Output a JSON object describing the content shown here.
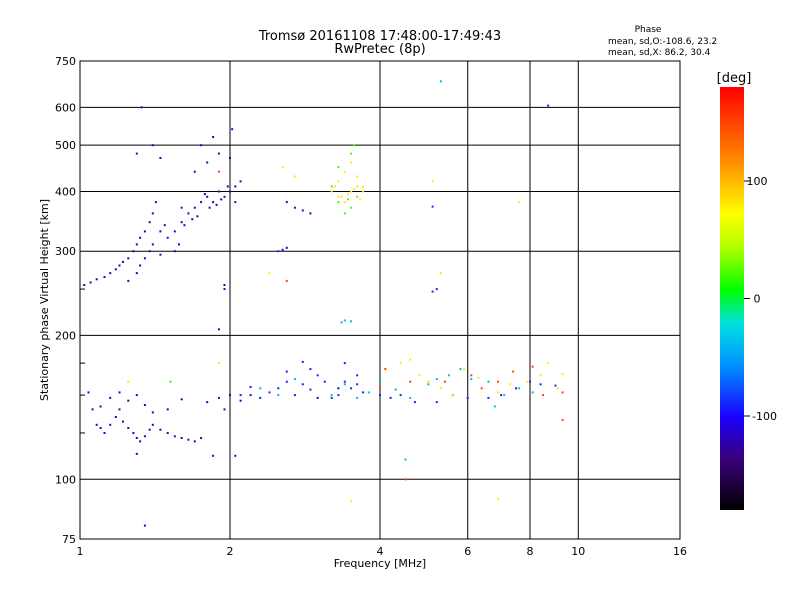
{
  "chart_data": {
    "type": "scatter",
    "title": "Tromsø 20161108 17:48:00-17:49:43",
    "subtitle": "RwPretec (8p)",
    "xlabel": "Frequency [MHz]",
    "ylabel": "Stationary phase Virtual Height [km]",
    "x_scale": "log",
    "y_scale": "log",
    "xlim": [
      1,
      16
    ],
    "ylim": [
      75,
      750
    ],
    "x_ticks": [
      1,
      2,
      4,
      6,
      8,
      10,
      16
    ],
    "x_tick_labels": [
      "1",
      "2",
      "4",
      "6",
      "8",
      "10",
      "16"
    ],
    "y_ticks": [
      75,
      100,
      200,
      300,
      400,
      500,
      600,
      750
    ],
    "y_tick_labels": [
      "75",
      "100",
      "200",
      "300",
      "400",
      "500",
      "600",
      "750"
    ],
    "grid": true,
    "phase_stats": {
      "title": "Phase",
      "line_o": "mean, sd,O:-108.6, 23.2",
      "line_x": "mean, sd,X:  86.2, 30.4"
    },
    "colorbar": {
      "label": "[deg]",
      "range": [
        -180,
        180
      ],
      "ticks": [
        -100,
        0,
        100
      ],
      "tick_labels": [
        "-100",
        "0",
        "100"
      ]
    },
    "series": [
      {
        "phase_deg": -120,
        "points": [
          [
            1.02,
            255
          ],
          [
            1.05,
            258
          ],
          [
            1.08,
            262
          ],
          [
            1.12,
            265
          ],
          [
            1.15,
            270
          ],
          [
            1.18,
            275
          ],
          [
            1.2,
            280
          ],
          [
            1.22,
            285
          ],
          [
            1.25,
            290
          ],
          [
            1.28,
            300
          ],
          [
            1.3,
            310
          ],
          [
            1.32,
            320
          ],
          [
            1.35,
            330
          ],
          [
            1.38,
            345
          ],
          [
            1.4,
            360
          ],
          [
            1.42,
            380
          ],
          [
            1.45,
            330
          ],
          [
            1.5,
            320
          ],
          [
            1.55,
            330
          ],
          [
            1.6,
            345
          ],
          [
            1.65,
            360
          ],
          [
            1.7,
            370
          ],
          [
            1.75,
            380
          ],
          [
            1.8,
            390
          ],
          [
            1.85,
            380
          ],
          [
            1.9,
            400
          ],
          [
            1.95,
            390
          ],
          [
            2.0,
            400
          ],
          [
            2.05,
            410
          ],
          [
            2.1,
            420
          ],
          [
            1.3,
            270
          ],
          [
            1.35,
            290
          ],
          [
            1.4,
            310
          ],
          [
            1.45,
            295
          ],
          [
            1.55,
            300
          ],
          [
            1.62,
            340
          ],
          [
            1.72,
            355
          ],
          [
            1.82,
            370
          ],
          [
            1.92,
            385
          ],
          [
            1.25,
            260
          ],
          [
            1.32,
            280
          ],
          [
            1.38,
            300
          ],
          [
            1.48,
            340
          ],
          [
            1.58,
            310
          ],
          [
            1.68,
            350
          ],
          [
            1.78,
            395
          ],
          [
            1.88,
            375
          ],
          [
            1.98,
            410
          ],
          [
            2.05,
            380
          ],
          [
            1.6,
            370
          ],
          [
            1.7,
            440
          ],
          [
            1.8,
            460
          ],
          [
            1.9,
            480
          ],
          [
            2.0,
            470
          ],
          [
            1.75,
            500
          ],
          [
            1.85,
            520
          ],
          [
            2.02,
            540
          ],
          [
            1.45,
            470
          ],
          [
            1.4,
            500
          ],
          [
            1.3,
            480
          ],
          [
            2.6,
            380
          ],
          [
            2.7,
            370
          ],
          [
            2.8,
            365
          ],
          [
            2.9,
            360
          ],
          [
            1.33,
            600
          ],
          [
            1.04,
            152
          ],
          [
            1.06,
            140
          ],
          [
            1.08,
            130
          ],
          [
            1.1,
            128
          ],
          [
            1.12,
            125
          ],
          [
            1.15,
            130
          ],
          [
            1.18,
            135
          ],
          [
            1.2,
            140
          ],
          [
            1.22,
            132
          ],
          [
            1.25,
            128
          ],
          [
            1.28,
            125
          ],
          [
            1.3,
            122
          ],
          [
            1.32,
            120
          ],
          [
            1.35,
            123
          ],
          [
            1.38,
            127
          ],
          [
            1.4,
            130
          ],
          [
            1.45,
            127
          ],
          [
            1.5,
            125
          ],
          [
            1.55,
            123
          ],
          [
            1.6,
            122
          ],
          [
            1.65,
            121
          ],
          [
            1.7,
            120
          ],
          [
            1.75,
            122
          ],
          [
            1.15,
            148
          ],
          [
            1.2,
            152
          ],
          [
            1.25,
            146
          ],
          [
            1.3,
            150
          ],
          [
            1.35,
            143
          ],
          [
            1.4,
            138
          ],
          [
            1.1,
            142
          ],
          [
            1.5,
            140
          ],
          [
            1.6,
            147
          ],
          [
            1.8,
            145
          ],
          [
            1.9,
            148
          ],
          [
            2.0,
            150
          ],
          [
            2.1,
            146
          ],
          [
            1.95,
            140
          ],
          [
            2.2,
            150
          ],
          [
            1.85,
            112
          ],
          [
            1.3,
            113
          ],
          [
            1.35,
            80
          ],
          [
            2.55,
            302
          ],
          [
            2.6,
            305
          ],
          [
            2.05,
            112
          ],
          [
            1.9,
            206
          ],
          [
            1.95,
            255
          ],
          [
            1.95,
            250
          ],
          [
            3.3,
            155
          ],
          [
            3.0,
            148
          ]
        ]
      },
      {
        "phase_deg": -90,
        "points": [
          [
            2.1,
            150
          ],
          [
            2.2,
            156
          ],
          [
            2.3,
            148
          ],
          [
            2.4,
            152
          ],
          [
            2.5,
            155
          ],
          [
            2.6,
            160
          ],
          [
            2.7,
            150
          ],
          [
            2.8,
            158
          ],
          [
            2.9,
            154
          ],
          [
            3.0,
            165
          ],
          [
            3.1,
            160
          ],
          [
            3.2,
            148
          ],
          [
            3.3,
            150
          ],
          [
            3.4,
            160
          ],
          [
            3.5,
            155
          ],
          [
            3.6,
            158
          ],
          [
            3.7,
            152
          ],
          [
            2.9,
            170
          ],
          [
            2.6,
            168
          ],
          [
            2.8,
            176
          ],
          [
            3.4,
            175
          ],
          [
            3.6,
            165
          ],
          [
            4.0,
            150
          ],
          [
            4.2,
            148
          ],
          [
            4.4,
            150
          ],
          [
            4.7,
            145
          ],
          [
            5.2,
            145
          ],
          [
            5.6,
            150
          ],
          [
            6.0,
            148
          ],
          [
            6.6,
            148
          ],
          [
            7.0,
            150
          ],
          [
            7.5,
            155
          ],
          [
            8.0,
            160
          ],
          [
            8.4,
            158
          ],
          [
            9.0,
            157
          ],
          [
            5.1,
            372
          ],
          [
            8.7,
            605
          ],
          [
            2.5,
            300
          ],
          [
            5.1,
            247
          ],
          [
            5.2,
            250
          ]
        ]
      },
      {
        "phase_deg": -40,
        "points": [
          [
            2.3,
            155
          ],
          [
            2.5,
            150
          ],
          [
            2.7,
            162
          ],
          [
            3.2,
            150
          ],
          [
            3.4,
            158
          ],
          [
            3.6,
            148
          ],
          [
            3.8,
            152
          ],
          [
            4.0,
            160
          ],
          [
            4.3,
            154
          ],
          [
            4.6,
            148
          ],
          [
            5.0,
            158
          ],
          [
            5.2,
            162
          ],
          [
            5.5,
            165
          ],
          [
            5.8,
            170
          ],
          [
            6.1,
            162
          ],
          [
            6.6,
            160
          ],
          [
            7.1,
            150
          ],
          [
            7.6,
            155
          ],
          [
            8.1,
            152
          ],
          [
            4.5,
            110
          ],
          [
            5.3,
            680
          ],
          [
            3.4,
            215
          ],
          [
            3.5,
            214
          ],
          [
            3.35,
            213
          ],
          [
            6.8,
            142
          ]
        ]
      },
      {
        "phase_deg": 80,
        "points": [
          [
            2.4,
            270
          ],
          [
            2.7,
            430
          ],
          [
            2.55,
            450
          ],
          [
            3.5,
            460
          ],
          [
            3.6,
            430
          ],
          [
            3.3,
            390
          ],
          [
            3.4,
            380
          ],
          [
            3.2,
            400
          ],
          [
            3.7,
            410
          ],
          [
            3.5,
            400
          ],
          [
            3.6,
            410
          ],
          [
            3.45,
            395
          ],
          [
            3.55,
            405
          ],
          [
            3.3,
            420
          ],
          [
            3.4,
            440
          ],
          [
            3.7,
            400
          ],
          [
            3.35,
            390
          ],
          [
            3.25,
            410
          ],
          [
            3.65,
            385
          ],
          [
            1.25,
            160
          ],
          [
            1.9,
            175
          ],
          [
            4.1,
            170
          ],
          [
            4.4,
            175
          ],
          [
            4.8,
            165
          ],
          [
            5.0,
            160
          ],
          [
            5.3,
            155
          ],
          [
            5.6,
            150
          ],
          [
            5.9,
            170
          ],
          [
            6.3,
            163
          ],
          [
            6.9,
            152
          ],
          [
            7.3,
            158
          ],
          [
            7.9,
            160
          ],
          [
            8.4,
            165
          ],
          [
            9.1,
            155
          ],
          [
            9.3,
            166
          ],
          [
            4.6,
            178
          ],
          [
            5.1,
            420
          ],
          [
            5.3,
            270
          ],
          [
            7.6,
            380
          ],
          [
            3.5,
            90
          ],
          [
            6.9,
            91
          ],
          [
            8.7,
            175
          ]
        ]
      },
      {
        "phase_deg": 20,
        "points": [
          [
            3.3,
            380
          ],
          [
            3.4,
            360
          ],
          [
            3.5,
            370
          ],
          [
            3.6,
            390
          ],
          [
            3.45,
            385
          ],
          [
            3.2,
            410
          ],
          [
            3.5,
            480
          ],
          [
            3.3,
            450
          ],
          [
            3.55,
            500
          ],
          [
            1.52,
            160
          ]
        ]
      },
      {
        "phase_deg": 150,
        "points": [
          [
            4.1,
            170
          ],
          [
            4.6,
            160
          ],
          [
            5.4,
            160
          ],
          [
            6.1,
            165
          ],
          [
            6.9,
            160
          ],
          [
            7.4,
            168
          ],
          [
            8.1,
            172
          ],
          [
            8.5,
            150
          ],
          [
            9.3,
            152
          ],
          [
            4.0,
            155
          ],
          [
            2.6,
            260
          ],
          [
            1.9,
            440
          ],
          [
            9.3,
            133
          ],
          [
            4.5,
            100
          ],
          [
            6.4,
            155
          ]
        ]
      }
    ]
  }
}
